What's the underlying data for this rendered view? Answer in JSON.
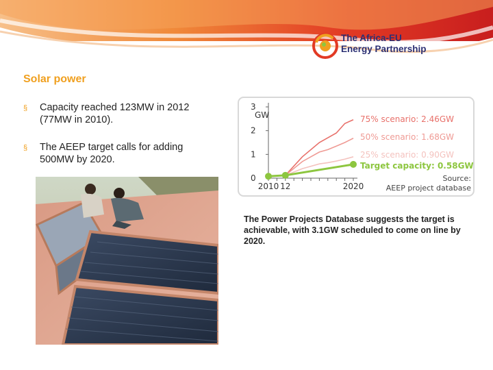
{
  "header": {
    "logo_line1": "The Africa-EU",
    "logo_line2": "Energy Partnership"
  },
  "slide": {
    "title": "Solar power",
    "bullets": [
      {
        "line1": "Capacity reached 123MW in 2012",
        "line2": "(77MW in 2010)."
      },
      {
        "line1": "The AEEP target calls for adding",
        "line2": "500MW by 2020."
      }
    ],
    "bullet_marker": "§",
    "note": "The Power Projects Database suggests the target is  achievable, with 3.1GW scheduled to come on line by 2020."
  },
  "chart_data": {
    "type": "line",
    "ylabel": "GW",
    "ylim": [
      0,
      3
    ],
    "yticks": [
      "0",
      "1",
      "2",
      "3"
    ],
    "xticks": [
      "2010",
      "12",
      "2020"
    ],
    "series": [
      {
        "name": "75% scenario: 2.46GW",
        "color": "#e8706a",
        "x": [
          2010,
          2012,
          2014,
          2016,
          2017,
          2018,
          2019,
          2020
        ],
        "y": [
          0.08,
          0.12,
          0.9,
          1.5,
          1.7,
          1.9,
          2.3,
          2.46
        ]
      },
      {
        "name": "50% scenario: 1.68GW",
        "color": "#ef9a94",
        "x": [
          2010,
          2012,
          2014,
          2016,
          2017,
          2018,
          2019,
          2020
        ],
        "y": [
          0.08,
          0.12,
          0.7,
          1.1,
          1.2,
          1.35,
          1.5,
          1.68
        ]
      },
      {
        "name": "25% scenario: 0.90GW",
        "color": "#f4c2be",
        "x": [
          2010,
          2012,
          2014,
          2016,
          2017,
          2018,
          2019,
          2020
        ],
        "y": [
          0.08,
          0.12,
          0.4,
          0.6,
          0.65,
          0.72,
          0.8,
          0.9
        ]
      },
      {
        "name": "Target capacity: 0.58GW",
        "color": "#8dc63f",
        "x": [
          2010,
          2012,
          2020
        ],
        "y": [
          0.08,
          0.12,
          0.58
        ]
      }
    ],
    "source_line1": "Source:",
    "source_line2": "AEEP project database",
    "grid": false
  },
  "colors": {
    "accent": "#f0a020",
    "target_green": "#8dc63f",
    "logo_navy": "#2b2f73",
    "banner_red": "#e23a24"
  }
}
